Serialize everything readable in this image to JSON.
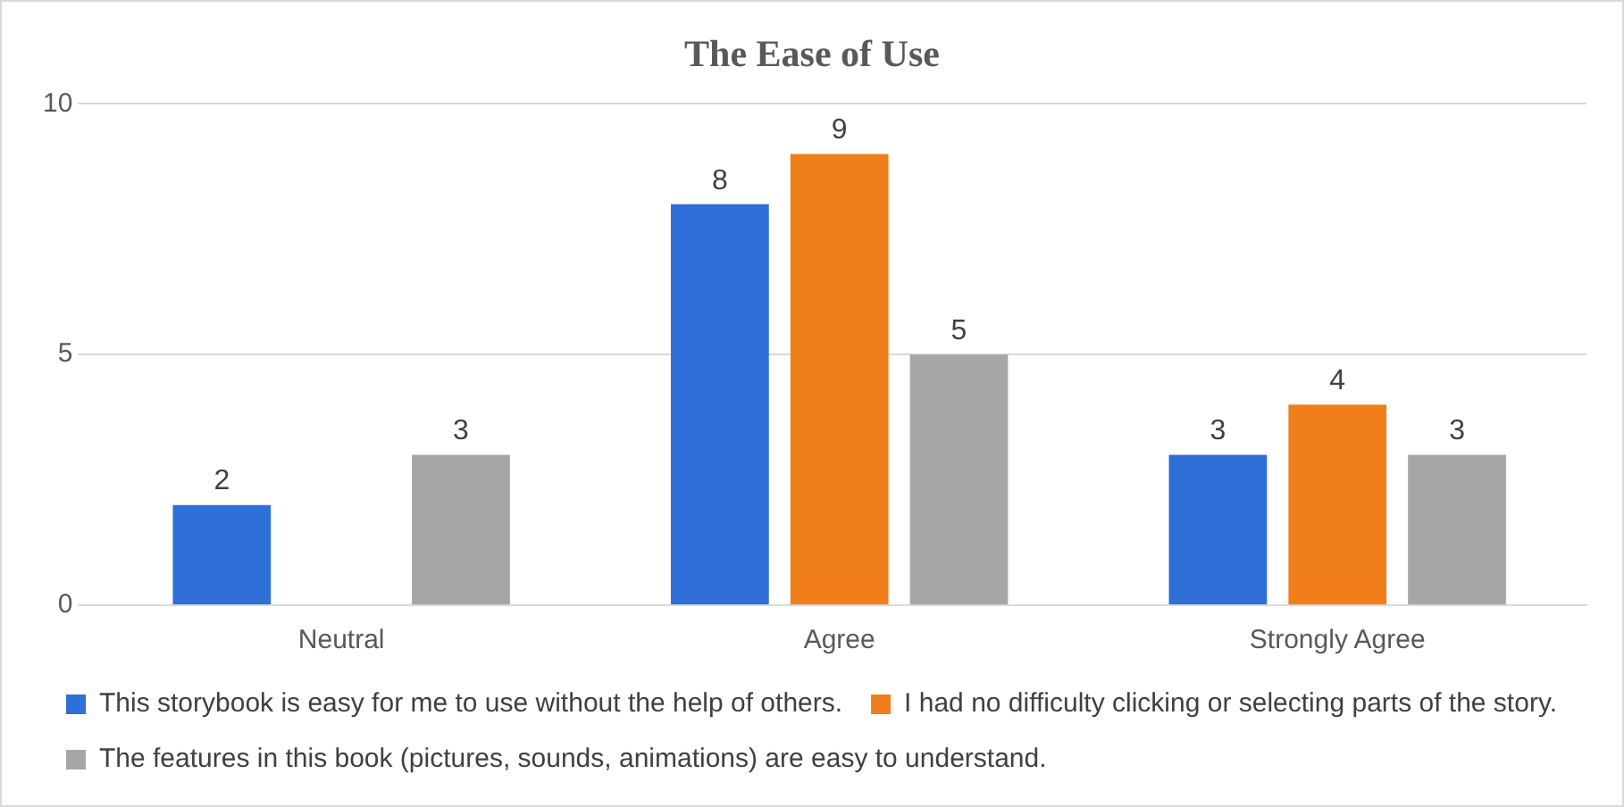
{
  "chart_data": {
    "type": "bar",
    "title": "The Ease of Use",
    "categories": [
      "Neutral",
      "Agree",
      "Strongly Agree"
    ],
    "series": [
      {
        "name": "This storybook is easy for me to use without the help of others.",
        "color": "#2e6fd8",
        "values": [
          2,
          8,
          3
        ]
      },
      {
        "name": "I had no difficulty clicking or selecting parts of the story.",
        "color": "#f07e1b",
        "values": [
          null,
          9,
          4
        ]
      },
      {
        "name": "The features in this book (pictures, sounds, animations) are easy to understand.",
        "color": "#a6a6a6",
        "values": [
          3,
          5,
          3
        ]
      }
    ],
    "ylim": [
      0,
      10
    ],
    "yticks": [
      0,
      5,
      10
    ],
    "grid": "y",
    "legend": "bottom",
    "data_labels": true
  }
}
